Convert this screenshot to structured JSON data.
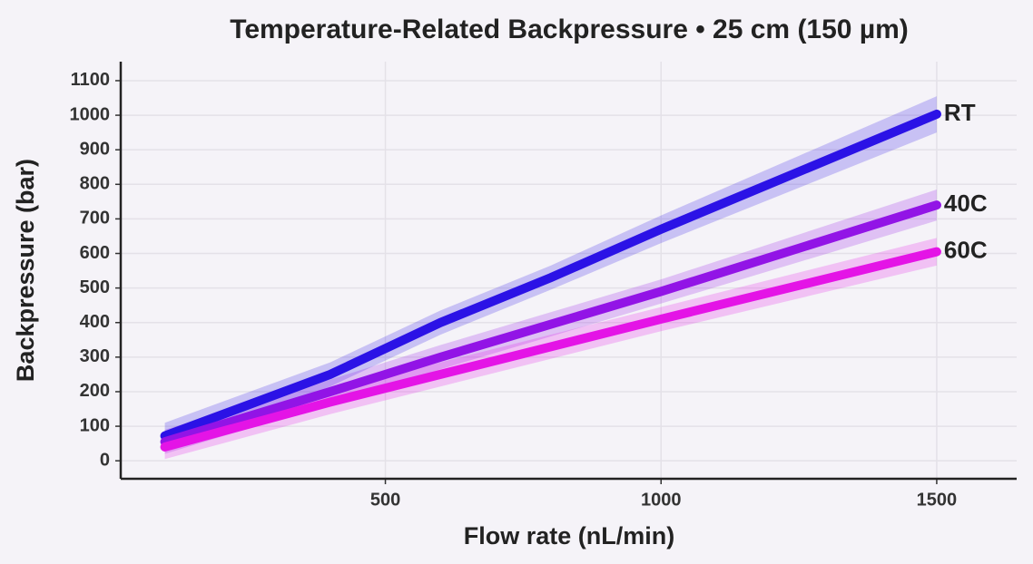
{
  "chart_data": {
    "type": "line",
    "title": "Temperature-Related Backpressure • 25 cm (150 µm)",
    "x_label": "Flow rate (nL/min)",
    "y_label": "Backpressure (bar)",
    "x": [
      100,
      400,
      600,
      800,
      1000,
      1500
    ],
    "series": [
      {
        "name": "RT",
        "color": "#2b12e6",
        "values": [
          72,
          250,
          400,
          530,
          670,
          1003
        ],
        "lower": [
          35,
          215,
          365,
          495,
          630,
          950
        ],
        "upper": [
          110,
          285,
          435,
          565,
          710,
          1055
        ]
      },
      {
        "name": "40C",
        "color": "#9214e6",
        "values": [
          55,
          200,
          300,
          395,
          490,
          740
        ],
        "lower": [
          20,
          165,
          265,
          360,
          455,
          695
        ],
        "upper": [
          90,
          235,
          335,
          430,
          525,
          785
        ]
      },
      {
        "name": "60C",
        "color": "#e414e6",
        "values": [
          40,
          170,
          250,
          330,
          410,
          605
        ],
        "lower": [
          5,
          135,
          215,
          295,
          375,
          565
        ],
        "upper": [
          75,
          205,
          285,
          365,
          445,
          645
        ]
      }
    ],
    "xlim": [
      20,
      1645
    ],
    "ylim": [
      -52,
      1155
    ],
    "xticks": [
      500,
      1000,
      1500
    ],
    "yticks": [
      0,
      100,
      200,
      300,
      400,
      500,
      600,
      700,
      800,
      900,
      1000,
      1100
    ],
    "grid": true
  }
}
